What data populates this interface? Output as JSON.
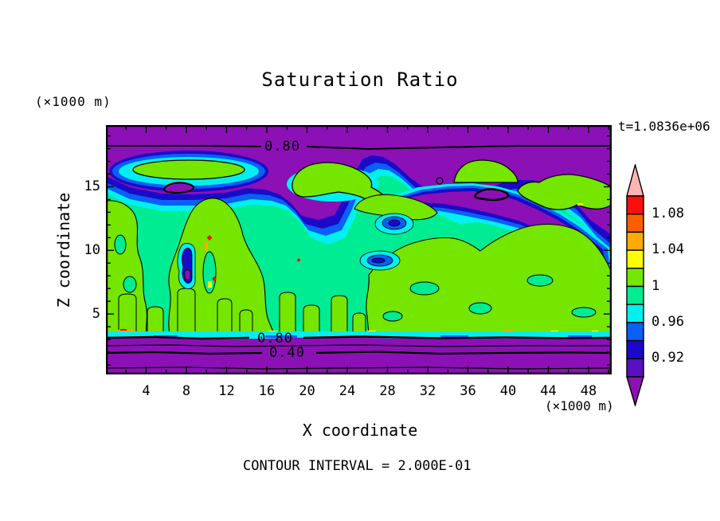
{
  "page": {
    "background": "#FFFFFF"
  },
  "chart_data": {
    "type": "filled-contour",
    "title": "Saturation Ratio",
    "timestamp": "t=1.0836e+06",
    "contour_note": "CONTOUR INTERVAL = 2.000E-01",
    "x_axis": {
      "label": "X coordinate",
      "unit": "(×1000 m)",
      "ticks": [
        4,
        8,
        12,
        16,
        20,
        24,
        28,
        32,
        36,
        40,
        44,
        48
      ],
      "minor_step": 2,
      "range": [
        0,
        50.3
      ]
    },
    "y_axis": {
      "label": "Z coordinate",
      "unit": "(×1000 m)",
      "ticks": [
        5,
        10,
        15
      ],
      "minor_step": 1,
      "range": [
        0.25,
        19.85
      ]
    },
    "contour_line_labels": {
      "top": "0.80",
      "bottom_upper": "0.80",
      "bottom_lower": "0.40"
    },
    "colorbar": {
      "max": 1.1,
      "step": 0.02,
      "labels": [
        "1.08",
        "1.04",
        "1",
        "0.96",
        "0.92"
      ],
      "segments": [
        {
          "name": "over-range",
          "color": "#FFB4B4"
        },
        {
          "name": "1.08-1.10",
          "color": "#FA0F0F"
        },
        {
          "name": "1.06-1.08",
          "color": "#FF5E00"
        },
        {
          "name": "1.04-1.06",
          "color": "#FFAA00"
        },
        {
          "name": "1.02-1.04",
          "color": "#FFFF00"
        },
        {
          "name": "1.00-1.02",
          "color": "#74E600"
        },
        {
          "name": "0.98-1.00",
          "color": "#00EC92"
        },
        {
          "name": "0.96-0.98",
          "color": "#00EFEF"
        },
        {
          "name": "0.94-0.96",
          "color": "#0A5FF5"
        },
        {
          "name": "0.92-0.94",
          "color": "#1A0AC8"
        },
        {
          "name": "0.90-0.92",
          "color": "#5A10C0"
        },
        {
          "name": "under-range",
          "color": "#8B10B6"
        }
      ]
    },
    "palette": {
      "pink": "#FFB4B4",
      "red": "#FA0F0F",
      "orangered": "#FF5E00",
      "orange": "#FFAA00",
      "yellow": "#FFFF00",
      "chartreuse": "#74E600",
      "spring": "#00EC92",
      "cyan": "#00EFEF",
      "blue": "#0A5FF5",
      "navy": "#1A0AC8",
      "violet": "#5A10C0",
      "purple": "#8B10B6",
      "line": "#000000"
    }
  }
}
